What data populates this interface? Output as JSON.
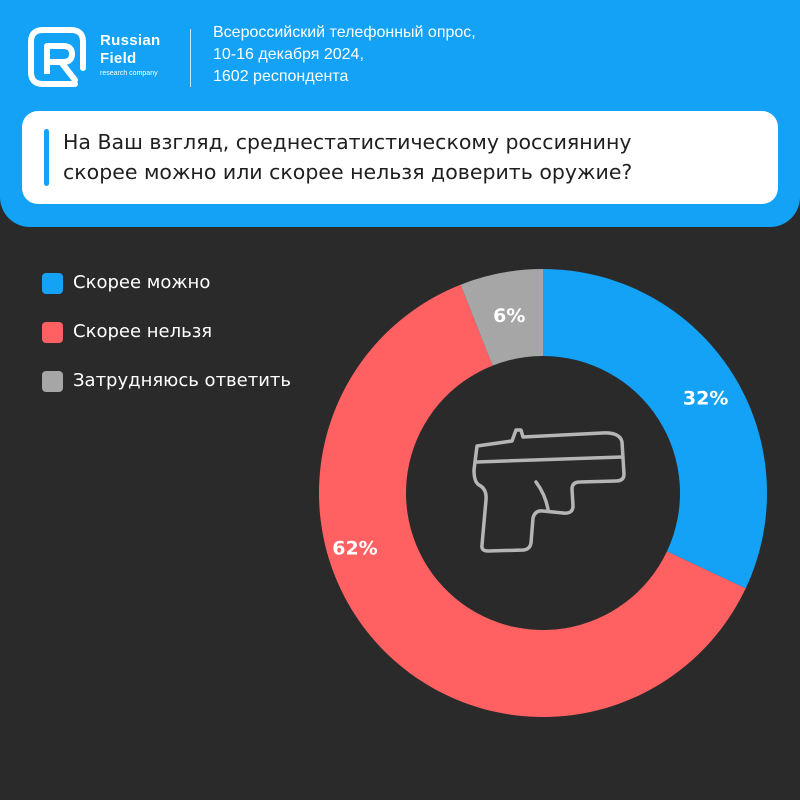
{
  "brand": {
    "name_line1": "Russian",
    "name_line2": "Field",
    "tagline": "research company"
  },
  "survey_info": {
    "line1": "Всероссийский телефонный опрос,",
    "line2": "10-16 декабря 2024,",
    "line3": "1602 респондента"
  },
  "question": {
    "line1": "На Ваш взгляд, среднестатистическому россиянину",
    "line2": "скорее можно или скорее нельзя доверить оружие?"
  },
  "colors": {
    "accent": "#13a2f5",
    "background": "#2b2a2b",
    "yes": "#13a2f5",
    "no": "#ff6162",
    "undecided": "#a6a6a6"
  },
  "center_icon": "pistol-icon",
  "chart_data": {
    "type": "pie",
    "style": "donut",
    "title": "",
    "legend_position": "top-left",
    "categories": [
      "Скорее можно",
      "Скорее нельзя",
      "Затрудняюсь ответить"
    ],
    "values": [
      32,
      62,
      6
    ],
    "labels": [
      "32%",
      "62%",
      "6%"
    ],
    "colors": [
      "#13a2f5",
      "#ff6162",
      "#a6a6a6"
    ]
  }
}
